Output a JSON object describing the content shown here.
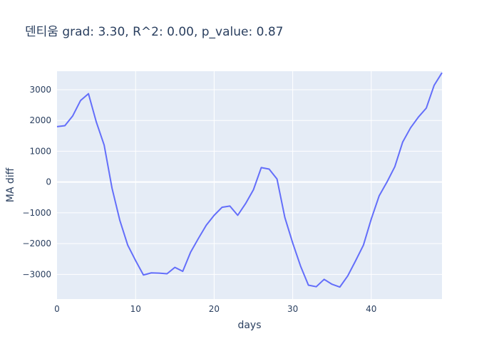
{
  "chart_data": {
    "type": "line",
    "title": "덴티움 grad: 3.30, R^2: 0.00, p_value: 0.87",
    "xlabel": "days",
    "ylabel": "MA diff",
    "xlim": [
      0,
      49
    ],
    "ylim": [
      -3800,
      3600
    ],
    "x_ticks": [
      0,
      10,
      20,
      30,
      40
    ],
    "y_ticks": [
      -3000,
      -2000,
      -1000,
      0,
      1000,
      2000,
      3000
    ],
    "grid": true,
    "line_color": "#636efa",
    "background_color": "#e5ecf6",
    "series": [
      {
        "x": [
          0,
          1,
          2,
          3,
          4,
          5,
          6,
          7,
          8,
          9,
          10,
          11,
          12,
          13,
          14,
          15,
          16,
          17,
          18,
          19,
          20,
          21,
          22,
          23,
          24,
          25,
          26,
          27,
          28,
          29,
          30,
          31,
          32,
          33,
          34,
          35,
          36,
          37,
          38,
          39,
          40,
          41,
          42,
          43,
          44,
          45,
          46,
          47,
          48,
          49
        ],
        "values": [
          1800,
          1830,
          2150,
          2650,
          2870,
          1950,
          1200,
          -200,
          -1250,
          -2050,
          -2550,
          -3020,
          -2950,
          -2960,
          -2980,
          -2770,
          -2900,
          -2280,
          -1830,
          -1400,
          -1080,
          -820,
          -780,
          -1080,
          -700,
          -250,
          470,
          420,
          100,
          -1150,
          -1980,
          -2730,
          -3350,
          -3400,
          -3160,
          -3320,
          -3410,
          -3050,
          -2560,
          -2050,
          -1200,
          -450,
          0,
          500,
          1300,
          1760,
          2110,
          2400,
          3140,
          3550
        ]
      }
    ]
  }
}
